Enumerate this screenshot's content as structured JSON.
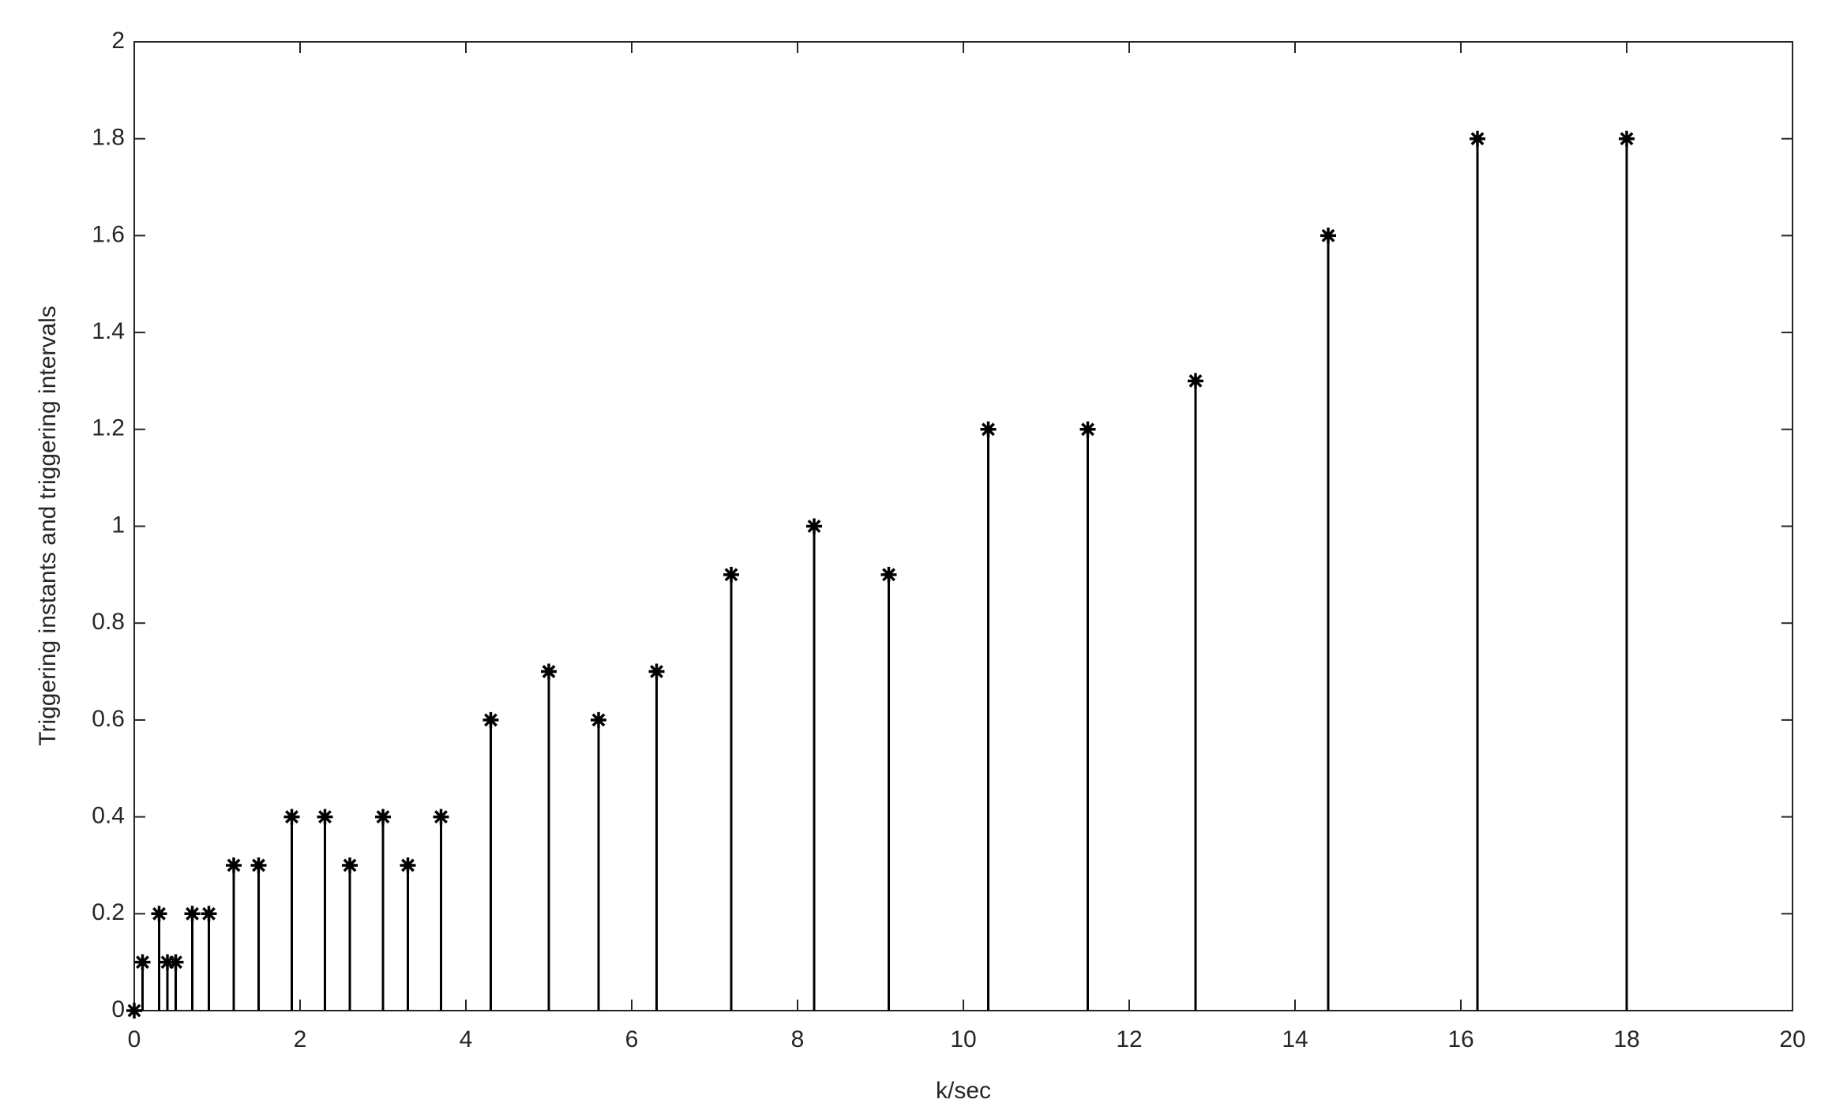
{
  "chart_data": {
    "type": "stem",
    "xlabel": "k/sec",
    "ylabel": "Triggering instants and triggering intervals",
    "x": [
      0,
      0.1,
      0.3,
      0.4,
      0.5,
      0.7,
      0.9,
      1.2,
      1.5,
      1.9,
      2.3,
      2.6,
      3.0,
      3.3,
      3.7,
      4.3,
      5.0,
      5.6,
      6.3,
      7.2,
      8.2,
      9.1,
      10.3,
      11.5,
      12.8,
      14.4,
      16.2,
      18.0
    ],
    "values": [
      0,
      0.1,
      0.2,
      0.1,
      0.1,
      0.2,
      0.2,
      0.3,
      0.3,
      0.4,
      0.4,
      0.3,
      0.4,
      0.3,
      0.4,
      0.6,
      0.7,
      0.6,
      0.7,
      0.9,
      1.0,
      0.9,
      1.2,
      1.2,
      1.3,
      1.6,
      1.8,
      1.8
    ],
    "color": "#000000",
    "xlim": [
      0,
      20
    ],
    "xticks": [
      0,
      2,
      4,
      6,
      8,
      10,
      12,
      14,
      16,
      18,
      20
    ],
    "ylim": [
      0,
      2
    ],
    "yticks": [
      0,
      0.2,
      0.4,
      0.6,
      0.8,
      1,
      1.2,
      1.4,
      1.6,
      1.8,
      2
    ]
  }
}
